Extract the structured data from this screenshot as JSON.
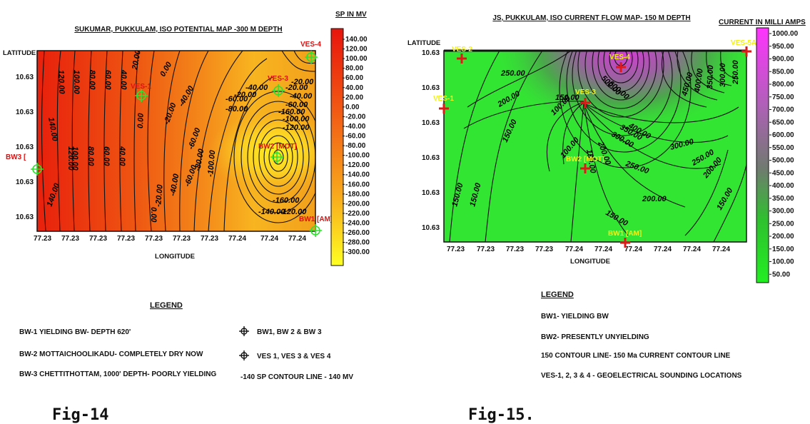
{
  "fig14": {
    "title": "SUKUMAR, PUKKULAM, ISO POTENTIAL MAP -300 M DEPTH",
    "y_axis_label": "LATITUDE",
    "x_axis_label": "LONGITUDE",
    "y_ticks": [
      "10.63",
      "10.63",
      "10.63",
      "10.63",
      "10.63"
    ],
    "x_ticks": [
      "77.23",
      "77.23",
      "77.23",
      "77.23",
      "77.23",
      "77.23",
      "77.23",
      "77.24",
      "77.24",
      "77.24",
      "77.24"
    ],
    "scale_title": "SP IN MV",
    "scale_values": [
      "140.00",
      "120.00",
      "100.00",
      "80.00",
      "60.00",
      "40.00",
      "20.00",
      "0.00",
      "-20.00",
      "-40.00",
      "-60.00",
      "-80.00",
      "-100.00",
      "-120.00",
      "-140.00",
      "-160.00",
      "-180.00",
      "-200.00",
      "-220.00",
      "-240.00",
      "-260.00",
      "-280.00",
      "-300.00"
    ],
    "contour_labels": [
      "140.00",
      "120.00",
      "100.00",
      "80.00",
      "60.00",
      "40.00",
      "20.00",
      "0.00",
      "-20.00",
      "-40.00",
      "-60.00",
      "-80.00",
      "-100.00",
      "-120.00",
      "-140.00",
      "-160.00",
      "-20.00",
      "-40.00",
      "-60.00",
      "-80.00",
      "0.00",
      "120.00",
      "80.00",
      "60.00",
      "40.00",
      "20.00",
      "-20.00",
      "-40.00",
      "-60.00",
      "-80.00",
      "-100.00",
      "-120.00",
      "-140.00",
      "100.00",
      "80.00",
      "60.00",
      "40.00",
      "0.00",
      "-20.00"
    ],
    "points": [
      {
        "name": "VES-4",
        "color": "red"
      },
      {
        "name": "VES-3",
        "color": "red"
      },
      {
        "name": "VES-1",
        "color": "red"
      },
      {
        "name": "BW2 [MOT]",
        "color": "red"
      },
      {
        "name": "BW3 [",
        "color": "red"
      },
      {
        "name": "BW1 [AM]",
        "color": "red"
      }
    ],
    "legend_title": "LEGEND",
    "legend_items": [
      "BW-1 YIELDING BW- DEPTH 620'",
      "BW-2 MOTTAICHOOLIKADU- COMPLETELY DRY NOW",
      "BW-3 CHETTITHOTTAM, 1000' DEPTH- POORLY YIELDING"
    ],
    "legend_symbols": [
      "BW1, BW 2 & BW 3",
      "VES 1, VES 3 & VES 4",
      "-140 SP CONTOUR LINE - 140 MV"
    ],
    "caption": "Fig-14"
  },
  "fig15": {
    "title": "JS, PUKKULAM, ISO CURRENT FLOW MAP- 150 M DEPTH",
    "y_axis_label": "LATITUDE",
    "x_axis_label": "LONGITUDE",
    "y_ticks": [
      "10.63",
      "10.63",
      "10.63",
      "10.63",
      "10.63",
      "10.63"
    ],
    "x_ticks": [
      "77.23",
      "77.23",
      "77.23",
      "77.23",
      "77.24",
      "77.24",
      "77.24",
      "77.24",
      "77.24",
      "77.24"
    ],
    "scale_title": "CURRENT IN MILLI AMPS",
    "scale_values": [
      "1000.00",
      "950.00",
      "900.00",
      "850.00",
      "800.00",
      "750.00",
      "700.00",
      "650.00",
      "600.00",
      "550.00",
      "500.00",
      "450.00",
      "400.00",
      "350.00",
      "300.00",
      "250.00",
      "200.00",
      "150.00",
      "100.00",
      "50.00"
    ],
    "contour_labels": [
      "250.00",
      "200.00",
      "150.00",
      "100.00",
      "150.00",
      "100.00",
      "200.00",
      "150.00",
      "200.00",
      "250.00",
      "300.00",
      "350.00",
      "400.00",
      "250.00",
      "200.00",
      "150.00",
      "300.00",
      "250.00",
      "200.00",
      "150.00",
      "450.00",
      "400.00",
      "350.00",
      "300.00",
      "250.00",
      "200.00",
      "600.00",
      "500.00"
    ],
    "points": [
      {
        "name": "VES-2",
        "color": "yellow"
      },
      {
        "name": "VES-4",
        "color": "yellow"
      },
      {
        "name": "VES-5A",
        "color": "yellow"
      },
      {
        "name": "VES-1",
        "color": "yellow"
      },
      {
        "name": "VES-3",
        "color": "yellow"
      },
      {
        "name": "BW2 [MOT]",
        "color": "yellow"
      },
      {
        "name": "BW1 [AM]",
        "color": "yellow"
      }
    ],
    "legend_title": "LEGEND",
    "legend_items": [
      "BW1- YIELDING BW",
      "BW2- PRESENTLY UNYIELDING",
      "150 CONTOUR LINE- 150 Ma CURRENT CONTOUR LINE",
      "VES-1, 2, 3 & 4 - GEOELECTRICAL SOUNDING LOCATIONS"
    ],
    "caption": "Fig-15."
  }
}
